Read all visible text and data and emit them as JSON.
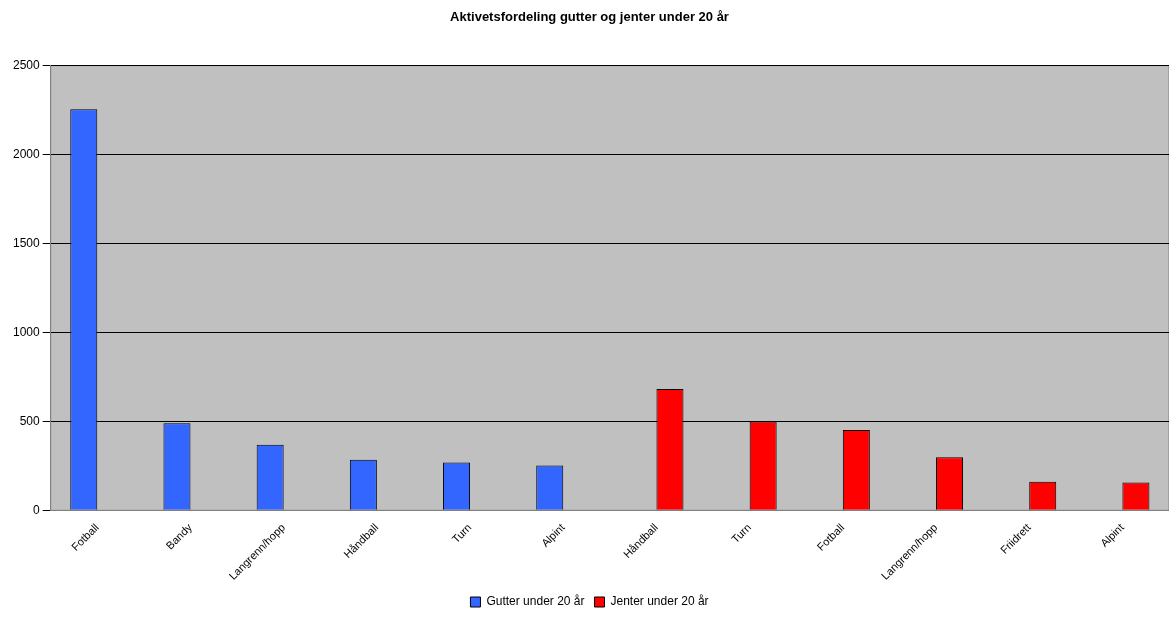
{
  "chart_data": {
    "type": "bar",
    "title": "Aktivetsfordeling gutter og jenter under 20 år",
    "categories": [
      "Fotball",
      "Bandy",
      "Langrenn/hopp",
      "Håndball",
      "Turn",
      "Alpint",
      "Håndball",
      "Turn",
      "Fotball",
      "Langrenn/hopp",
      "Friidrett",
      "Alpint"
    ],
    "series": [
      {
        "name": "Gutter under 20 år",
        "color": "#3366ff",
        "values": [
          2255,
          489,
          369,
          284,
          269,
          252,
          null,
          null,
          null,
          null,
          null,
          null
        ]
      },
      {
        "name": "Jenter under 20 år",
        "color": "#ff0000",
        "values": [
          null,
          null,
          null,
          null,
          null,
          null,
          682,
          500,
          452,
          298,
          161,
          157
        ]
      }
    ],
    "ylim": [
      0,
      2500
    ],
    "yticks": [
      0,
      500,
      1000,
      1500,
      2000,
      2500
    ],
    "grid": "y",
    "legend": "bottom"
  }
}
